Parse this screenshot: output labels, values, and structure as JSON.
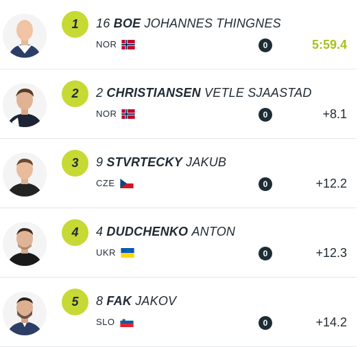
{
  "results": [
    {
      "rank": "1",
      "bib": "16",
      "last_name": "BOE",
      "first_name": "JOHANNES THINGNES",
      "nation": "NOR",
      "flag": "norway-flag",
      "penalties": "0",
      "result": "5:59.4",
      "winner": true
    },
    {
      "rank": "2",
      "bib": "2",
      "last_name": "CHRISTIANSEN",
      "first_name": "VETLE SJAASTAD",
      "nation": "NOR",
      "flag": "norway-flag",
      "penalties": "0",
      "result": "+8.1",
      "winner": false
    },
    {
      "rank": "3",
      "bib": "9",
      "last_name": "STVRTECKY",
      "first_name": "JAKUB",
      "nation": "CZE",
      "flag": "czech-flag",
      "penalties": "0",
      "result": "+12.2",
      "winner": false
    },
    {
      "rank": "4",
      "bib": "4",
      "last_name": "DUDCHENKO",
      "first_name": "ANTON",
      "nation": "UKR",
      "flag": "ukraine-flag",
      "penalties": "0",
      "result": "+12.3",
      "winner": false
    },
    {
      "rank": "5",
      "bib": "8",
      "last_name": "FAK",
      "first_name": "JAKOV",
      "nation": "SLO",
      "flag": "slovenia-flag",
      "penalties": "0",
      "result": "+14.2",
      "winner": false
    }
  ],
  "colors": {
    "rank_badge": "#c7d934",
    "winner_time": "#a8c11e",
    "penalty_badge": "#1e2d35",
    "divider": "#e3e6e9"
  }
}
